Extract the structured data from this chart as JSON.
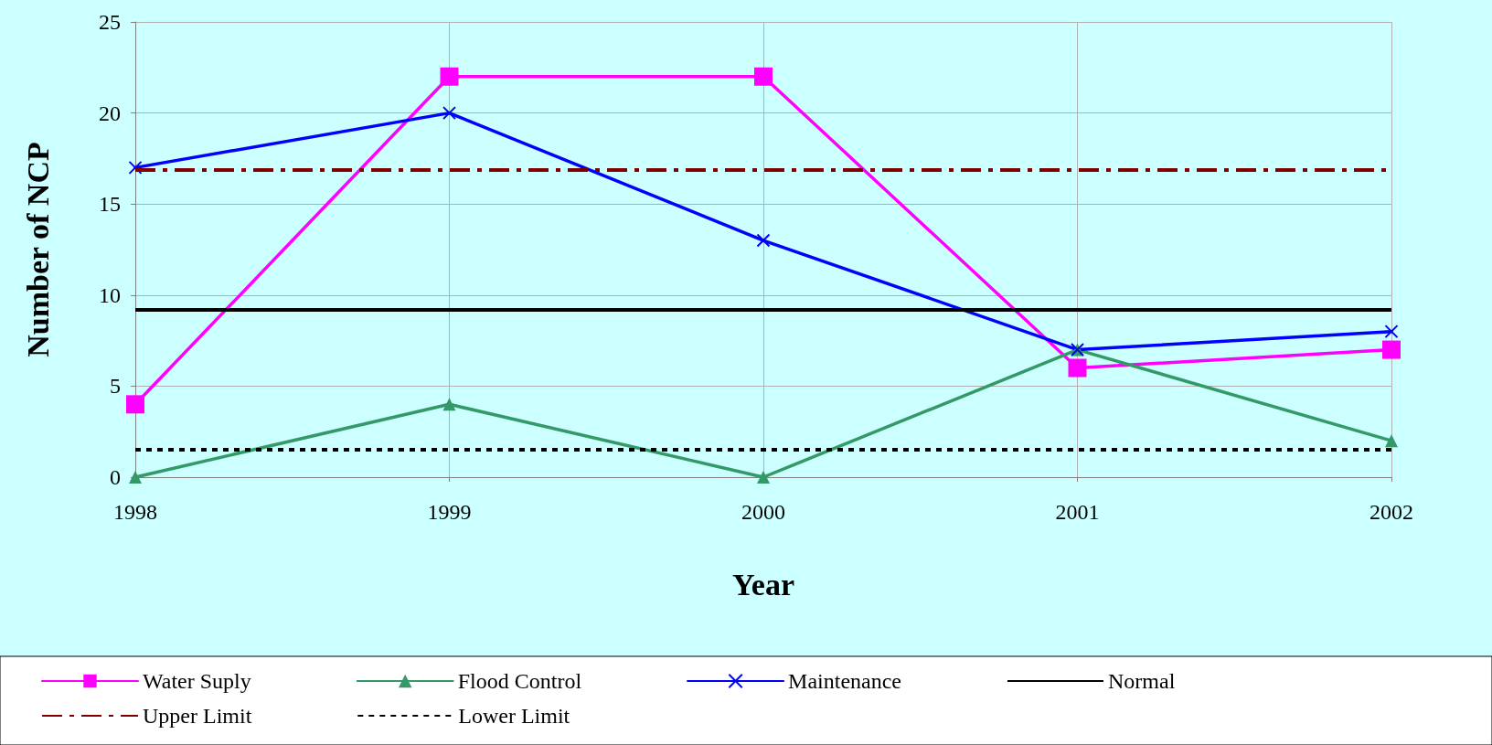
{
  "chart_data": {
    "type": "line",
    "xlabel": "Year",
    "ylabel": "Number of NCP",
    "categories": [
      "1998",
      "1999",
      "2000",
      "2001",
      "2002"
    ],
    "series": [
      {
        "name": "Water Suply",
        "color": "#ff00ff",
        "marker": "square",
        "values": [
          4,
          22,
          22,
          6,
          7
        ]
      },
      {
        "name": "Flood Control",
        "color": "#339966",
        "marker": "triangle",
        "values": [
          0,
          4,
          0,
          7,
          2
        ]
      },
      {
        "name": "Maintenance",
        "color": "#0000ff",
        "marker": "cross",
        "values": [
          17,
          20,
          13,
          7,
          8
        ]
      }
    ],
    "ref_lines": [
      {
        "axis": "y",
        "value": 9.2,
        "label": "Normal",
        "color": "#000000",
        "line_style": "solid"
      },
      {
        "axis": "y",
        "value": 16.9,
        "label": "Upper Limit",
        "color": "#800000",
        "line_style": "dashed"
      },
      {
        "axis": "y",
        "value": 1.5,
        "label": "Lower Limit",
        "color": "#000000",
        "line_style": "dotted"
      }
    ],
    "ylim": [
      0,
      25
    ],
    "yticks": [
      0,
      5,
      10,
      15,
      20,
      25
    ],
    "grid": true,
    "legend": "bottom",
    "line_style": "solid"
  }
}
